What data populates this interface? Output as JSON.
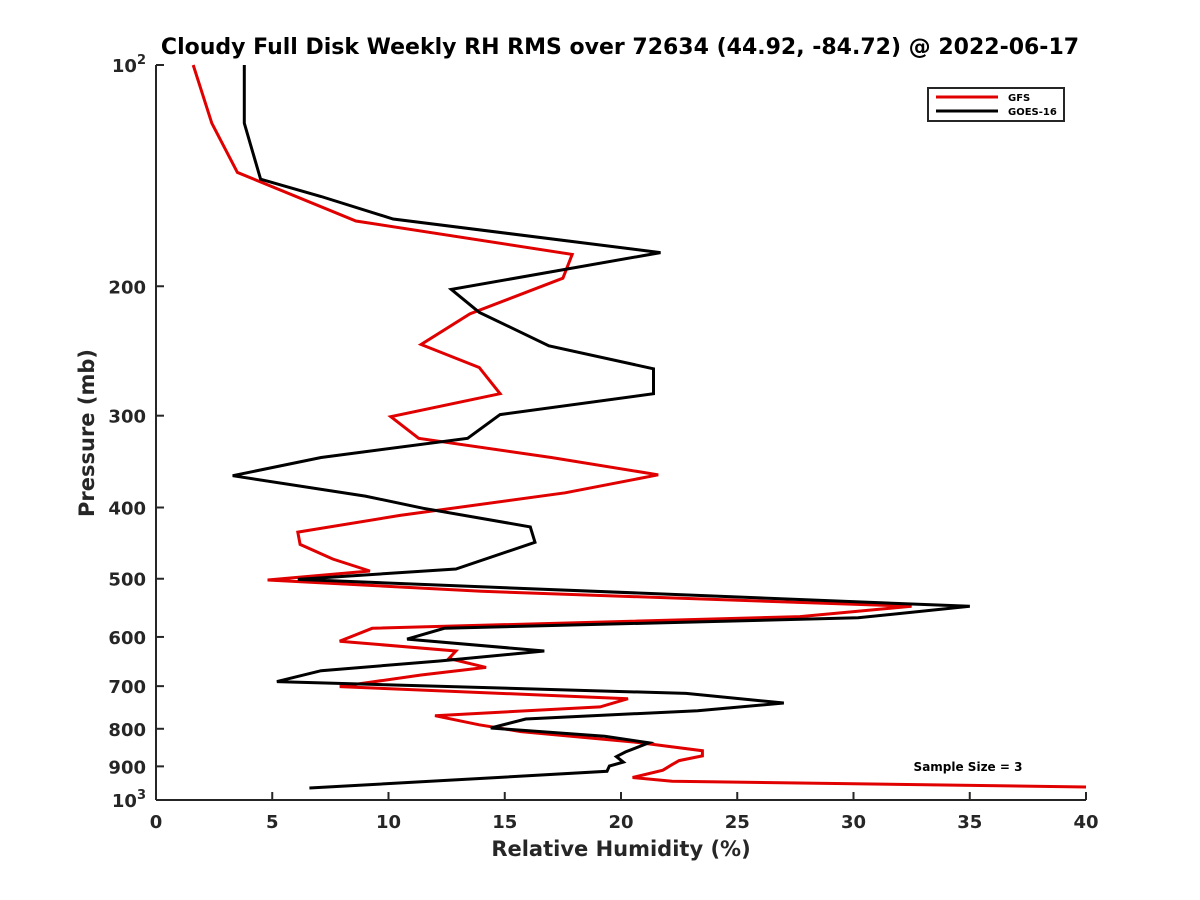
{
  "chart_data": {
    "type": "line",
    "title": "Cloudy Full Disk Weekly RH RMS over 72634 (44.92, -84.72) @ 2022-06-17",
    "xlabel": "Relative Humidity (%)",
    "ylabel": "Pressure (mb)",
    "xlim": [
      0,
      40
    ],
    "ylim": [
      100,
      1000
    ],
    "yscale": "log",
    "yreverse": true,
    "grid": false,
    "legend_position": "top-right",
    "x_ticks": [
      "0",
      "5",
      "10",
      "15",
      "20",
      "25",
      "30",
      "35",
      "40"
    ],
    "y_ticks": [
      {
        "value": 100,
        "label": "10",
        "sup": "2"
      },
      {
        "value": 200,
        "label": "200",
        "sup": ""
      },
      {
        "value": 300,
        "label": "300",
        "sup": ""
      },
      {
        "value": 400,
        "label": "400",
        "sup": ""
      },
      {
        "value": 500,
        "label": "500",
        "sup": ""
      },
      {
        "value": 600,
        "label": "600",
        "sup": ""
      },
      {
        "value": 700,
        "label": "700",
        "sup": ""
      },
      {
        "value": 800,
        "label": "800",
        "sup": ""
      },
      {
        "value": 900,
        "label": "900",
        "sup": ""
      },
      {
        "value": 1000,
        "label": "10",
        "sup": "3"
      }
    ],
    "series": [
      {
        "name": "GFS",
        "color": "#e00000",
        "points": [
          [
            1.6,
            100
          ],
          [
            2.4,
            120
          ],
          [
            3.5,
            140
          ],
          [
            8.6,
            163
          ],
          [
            17.9,
            181
          ],
          [
            17.5,
            195
          ],
          [
            13.5,
            218
          ],
          [
            11.4,
            240
          ],
          [
            13.9,
            258
          ],
          [
            14.8,
            280
          ],
          [
            10.1,
            301
          ],
          [
            11.3,
            322
          ],
          [
            17,
            342
          ],
          [
            21.6,
            361
          ],
          [
            17.6,
            382
          ],
          [
            10.5,
            410
          ],
          [
            6.1,
            432
          ],
          [
            6.2,
            449
          ],
          [
            7.6,
            470
          ],
          [
            9.2,
            488
          ],
          [
            4.8,
            502
          ],
          [
            14,
            520
          ],
          [
            32.5,
            545
          ],
          [
            27.7,
            563
          ],
          [
            9.3,
            584
          ],
          [
            7.9,
            608
          ],
          [
            12.9,
            627
          ],
          [
            12.6,
            642
          ],
          [
            14.2,
            660
          ],
          [
            11.4,
            676
          ],
          [
            7.9,
            701
          ],
          [
            20.3,
            728
          ],
          [
            19.1,
            747
          ],
          [
            12,
            768
          ],
          [
            13.9,
            790
          ],
          [
            15.7,
            807
          ],
          [
            20.7,
            835
          ],
          [
            23.5,
            857
          ],
          [
            23.5,
            871
          ],
          [
            22.5,
            884
          ],
          [
            22.2,
            895
          ],
          [
            21.8,
            911
          ],
          [
            20.5,
            932
          ],
          [
            22.2,
            943
          ],
          [
            40,
            960
          ]
        ]
      },
      {
        "name": "GOES-16",
        "color": "#000000",
        "points": [
          [
            3.8,
            100
          ],
          [
            3.8,
            120
          ],
          [
            4.5,
            143
          ],
          [
            7.1,
            151
          ],
          [
            10.2,
            162
          ],
          [
            21.7,
            180
          ],
          [
            12.7,
            202
          ],
          [
            13.9,
            217
          ],
          [
            16.9,
            241
          ],
          [
            21.4,
            259
          ],
          [
            21.4,
            280
          ],
          [
            14.8,
            299
          ],
          [
            13.4,
            322
          ],
          [
            7.1,
            342
          ],
          [
            3.3,
            362
          ],
          [
            9,
            386
          ],
          [
            11.5,
            401
          ],
          [
            16.1,
            425
          ],
          [
            16.3,
            446
          ],
          [
            12.9,
            485
          ],
          [
            6.1,
            501
          ],
          [
            35,
            545
          ],
          [
            30.2,
            565
          ],
          [
            12.4,
            584
          ],
          [
            10.8,
            604
          ],
          [
            16.7,
            627
          ],
          [
            12.2,
            647
          ],
          [
            7.1,
            667
          ],
          [
            5.2,
            690
          ],
          [
            22.8,
            716
          ],
          [
            27,
            738
          ],
          [
            23.3,
            756
          ],
          [
            15.9,
            776
          ],
          [
            14.4,
            798
          ],
          [
            19.3,
            819
          ],
          [
            21.2,
            836
          ],
          [
            20.2,
            860
          ],
          [
            19.8,
            873
          ],
          [
            20.1,
            888
          ],
          [
            19.5,
            899
          ],
          [
            19.4,
            914
          ],
          [
            14.7,
            932
          ],
          [
            6.6,
            963
          ]
        ]
      }
    ],
    "annotations": [
      "Sample Size = 3"
    ]
  }
}
